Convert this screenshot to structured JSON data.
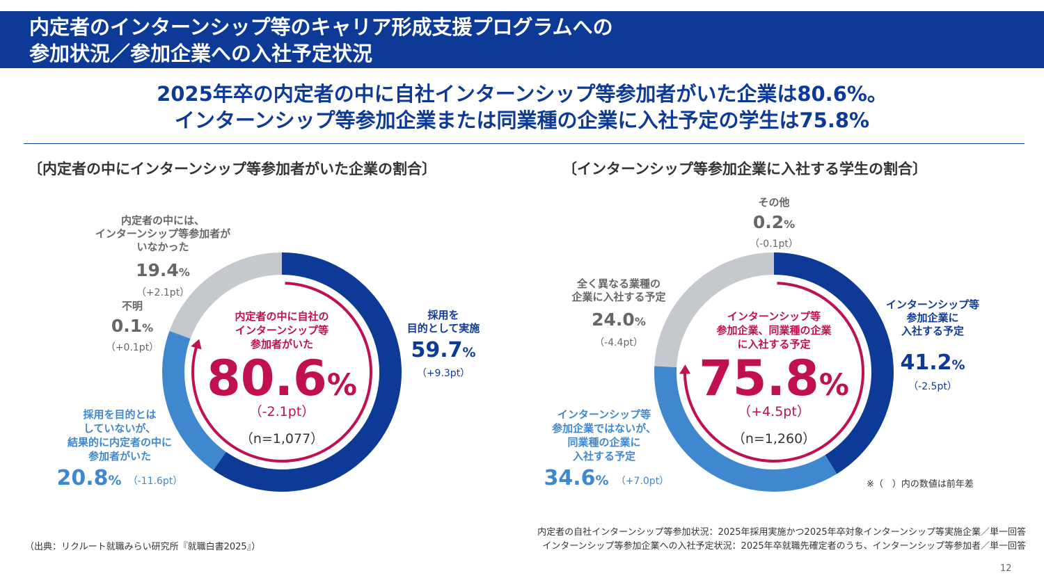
{
  "header": {
    "title_line1": "内定者のインターンシップ等のキャリア形成支援プログラムへの",
    "title_line2": "参加状況／参加企業への入社予定状況"
  },
  "headline": {
    "line1": "2025年卒の内定者の中に自社インターンシップ等参加者がいた企業は80.6%。",
    "line2": "インターンシップ等参加企業または同業種の企業に入社予定の学生は75.8%"
  },
  "colors": {
    "navy": "#0c3a96",
    "mid_blue": "#3f87cf",
    "gray": "#c5c8cd",
    "crimson": "#c0104f",
    "text_gray": "#666666"
  },
  "chart_data": [
    {
      "type": "pie",
      "title": "〔内定者の中にインターンシップ等参加者がいた企業の割合〕",
      "center": {
        "label_lines": [
          "内定者の中に自社の",
          "インターンシップ等",
          "参加者がいた"
        ],
        "value": "80.6",
        "unit": "%",
        "change": "（-2.1pt）",
        "n": "（n=1,077）"
      },
      "slices": [
        {
          "label_lines": [
            "採用を",
            "目的として実施"
          ],
          "value": 59.7,
          "value_text": "59.7",
          "unit": "%",
          "change": "（+9.3pt）",
          "color": "#0c3a96",
          "label_color": "#0c3a96"
        },
        {
          "label_lines": [
            "採用を目的とは",
            "していないが、",
            "結果的に内定者の中に",
            "参加者がいた"
          ],
          "value": 20.8,
          "value_text": "20.8",
          "unit": "%",
          "change": "（-11.6pt）",
          "color": "#3f87cf",
          "label_color": "#3f87cf"
        },
        {
          "label_lines": [
            "不明"
          ],
          "value": 0.1,
          "value_text": "0.1",
          "unit": "%",
          "change": "（+0.1pt）",
          "color": "#3f87cf",
          "label_color": "#666666"
        },
        {
          "label_lines": [
            "内定者の中には、",
            "インターンシップ等参加者が",
            "いなかった"
          ],
          "value": 19.4,
          "value_text": "19.4",
          "unit": "%",
          "change": "（+2.1pt）",
          "color": "#c5c8cd",
          "label_color": "#666666"
        }
      ]
    },
    {
      "type": "pie",
      "title": "〔インターンシップ等参加企業に入社する学生の割合〕",
      "center": {
        "label_lines": [
          "インターンシップ等",
          "参加企業、同業種の企業",
          "に入社する予定"
        ],
        "value": "75.8",
        "unit": "%",
        "change": "（+4.5pt）",
        "n": "（n=1,260）"
      },
      "slices": [
        {
          "label_lines": [
            "インターンシップ等",
            "参加企業に",
            "入社する予定"
          ],
          "value": 41.2,
          "value_text": "41.2",
          "unit": "%",
          "change": "（-2.5pt）",
          "color": "#0c3a96",
          "label_color": "#0c3a96"
        },
        {
          "label_lines": [
            "インターンシップ等",
            "参加企業ではないが、",
            "同業種の企業に",
            "入社する予定"
          ],
          "value": 34.6,
          "value_text": "34.6",
          "unit": "%",
          "change": "（+7.0pt）",
          "color": "#3f87cf",
          "label_color": "#3f87cf"
        },
        {
          "label_lines": [
            "全く異なる業種の",
            "企業に入社する予定"
          ],
          "value": 24.0,
          "value_text": "24.0",
          "unit": "%",
          "change": "（-4.4pt）",
          "color": "#c5c8cd",
          "label_color": "#666666"
        },
        {
          "label_lines": [
            "その他"
          ],
          "value": 0.2,
          "value_text": "0.2",
          "unit": "%",
          "change": "（-0.1pt）",
          "color": "#c5c8cd",
          "label_color": "#666666"
        }
      ]
    }
  ],
  "footnote": "※（　）内の数値は前年差",
  "notes": {
    "line1": "内定者の自社インターンシップ等参加状況：2025年採用実施かつ2025年卒対象インターンシップ等実施企業／単一回答",
    "line2": "インターンシップ等参加企業への入社予定状況：2025年卒就職先確定者のうち、インターンシップ等参加者／単一回答"
  },
  "source": "（出典：リクルート就職みらい研究所『就職白書2025』）",
  "page_number": "12"
}
